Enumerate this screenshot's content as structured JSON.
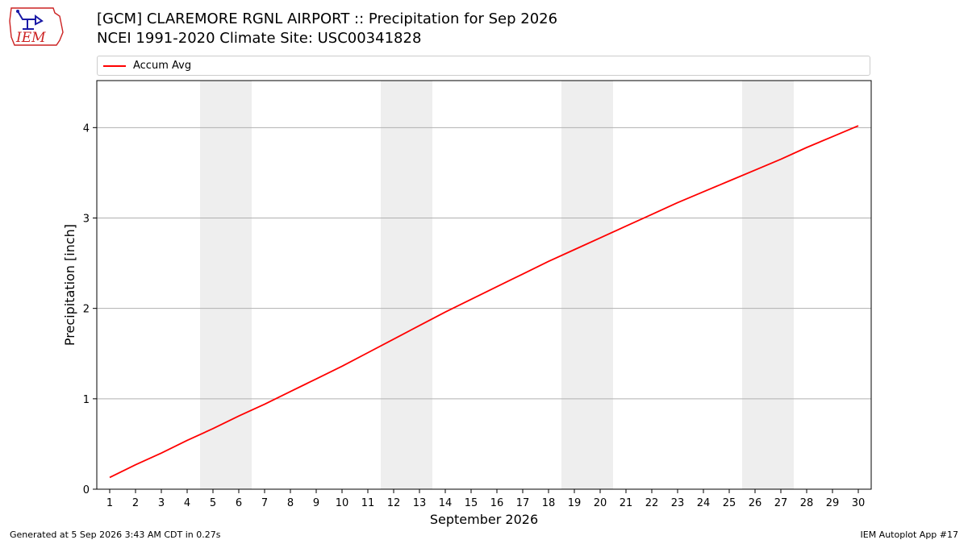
{
  "header": {
    "logo_text": "IEM",
    "title_line1": "[GCM] CLAREMORE RGNL AIRPORT :: Precipitation for Sep 2026",
    "title_line2": "NCEI 1991-2020 Climate Site: USC00341828"
  },
  "footer": {
    "generated": "Generated at 5 Sep 2026 3:43 AM CDT in 0.27s",
    "app": "IEM Autoplot App #17"
  },
  "colors": {
    "line": "#ff0000",
    "weekend_shade": "#eeeeee",
    "grid": "#b0b0b0",
    "logo_red": "#cc2222",
    "logo_blue": "#1a1aa6"
  },
  "chart_data": {
    "type": "line",
    "title": "",
    "xlabel": "September 2026",
    "ylabel": "Precipitation [inch]",
    "x": [
      1,
      2,
      3,
      4,
      5,
      6,
      7,
      8,
      9,
      10,
      11,
      12,
      13,
      14,
      15,
      16,
      17,
      18,
      19,
      20,
      21,
      22,
      23,
      24,
      25,
      26,
      27,
      28,
      29,
      30
    ],
    "xticks": [
      "1",
      "2",
      "3",
      "4",
      "5",
      "6",
      "7",
      "8",
      "9",
      "10",
      "11",
      "12",
      "13",
      "14",
      "15",
      "16",
      "17",
      "18",
      "19",
      "20",
      "21",
      "22",
      "23",
      "24",
      "25",
      "26",
      "27",
      "28",
      "29",
      "30"
    ],
    "xlim": [
      0.5,
      30.5
    ],
    "ylim": [
      0,
      4.52
    ],
    "yticks": [
      "0",
      "1",
      "2",
      "3",
      "4"
    ],
    "grid": "horizontal",
    "legend_placement": "top",
    "shaded_days": [
      [
        5,
        6
      ],
      [
        12,
        13
      ],
      [
        19,
        20
      ],
      [
        26,
        27
      ]
    ],
    "series": [
      {
        "name": "Accum Avg",
        "values": [
          0.13,
          0.27,
          0.4,
          0.54,
          0.67,
          0.81,
          0.94,
          1.08,
          1.22,
          1.36,
          1.51,
          1.66,
          1.81,
          1.96,
          2.1,
          2.24,
          2.38,
          2.52,
          2.65,
          2.78,
          2.91,
          3.04,
          3.17,
          3.29,
          3.41,
          3.53,
          3.65,
          3.78,
          3.9,
          4.02
        ]
      }
    ]
  }
}
